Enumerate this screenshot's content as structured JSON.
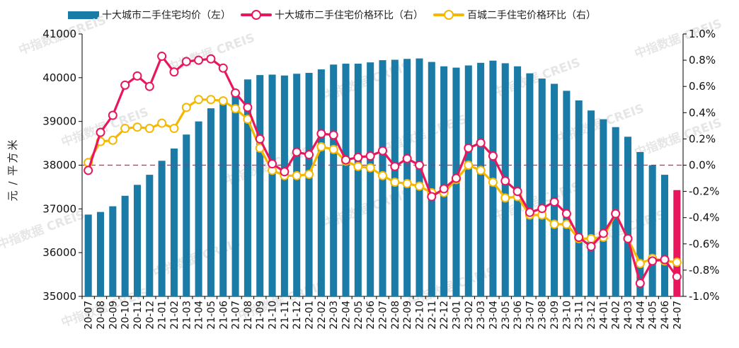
{
  "legend": {
    "bar_label": "十大城市二手住宅均价（左）",
    "line1_label": "十大城市二手住宅价格环比（右）",
    "line2_label": "百城二手住宅价格环比（右）"
  },
  "colors": {
    "bar": "#1A7BA6",
    "bar_highlight": "#E8175D",
    "line_ten_city": "#E8175D",
    "line_hundred_city": "#F5B800",
    "zero_line": "#E8175D"
  },
  "watermark": "中指数据 CREIS",
  "chart_data": {
    "type": "bar+line",
    "x": [
      "20-07",
      "20-08",
      "20-09",
      "20-10",
      "20-11",
      "20-12",
      "21-01",
      "21-02",
      "21-03",
      "21-04",
      "21-05",
      "21-06",
      "21-07",
      "21-08",
      "21-09",
      "21-10",
      "21-11",
      "21-12",
      "22-01",
      "22-02",
      "22-03",
      "22-04",
      "22-05",
      "22-06",
      "22-07",
      "22-08",
      "22-09",
      "22-10",
      "22-11",
      "22-12",
      "23-01",
      "23-02",
      "23-03",
      "23-04",
      "23-05",
      "23-06",
      "23-07",
      "23-08",
      "23-09",
      "23-10",
      "23-11",
      "23-12",
      "24-01",
      "24-02",
      "24-03",
      "24-04",
      "24-05",
      "24-06",
      "24-07"
    ],
    "y_left": {
      "label": "元/平方米",
      "lim": [
        35000,
        41000
      ],
      "ticks": [
        35000,
        36000,
        37000,
        38000,
        39000,
        40000,
        41000
      ]
    },
    "y_right": {
      "lim": [
        -1.0,
        1.0
      ],
      "ticks": [
        "-1.0%",
        "-0.8%",
        "-0.6%",
        "-0.4%",
        "-0.2%",
        "0.0%",
        "0.2%",
        "0.4%",
        "0.6%",
        "0.8%",
        "1.0%"
      ]
    },
    "series": [
      {
        "name": "十大城市二手住宅均价（左）",
        "kind": "bar",
        "axis": "left",
        "values": [
          36870,
          36930,
          37060,
          37300,
          37550,
          37780,
          38100,
          38380,
          38700,
          39000,
          39300,
          39500,
          39720,
          39960,
          40060,
          40070,
          40050,
          40090,
          40110,
          40190,
          40300,
          40320,
          40320,
          40350,
          40400,
          40410,
          40430,
          40440,
          40360,
          40260,
          40230,
          40280,
          40340,
          40390,
          40330,
          40260,
          40100,
          39980,
          39860,
          39700,
          39480,
          39250,
          39050,
          38870,
          38650,
          38300,
          38000,
          37780,
          37430
        ]
      },
      {
        "name": "十大城市二手住宅价格环比（右）",
        "kind": "line",
        "axis": "right",
        "values": [
          -0.04,
          0.25,
          0.38,
          0.61,
          0.68,
          0.6,
          0.83,
          0.71,
          0.79,
          0.8,
          0.81,
          0.74,
          0.55,
          0.44,
          0.2,
          0.01,
          -0.05,
          0.1,
          0.08,
          0.24,
          0.23,
          0.04,
          0.06,
          0.07,
          0.11,
          -0.01,
          0.05,
          0.0,
          -0.24,
          -0.18,
          -0.1,
          0.13,
          0.17,
          0.07,
          -0.12,
          -0.2,
          -0.36,
          -0.33,
          -0.28,
          -0.37,
          -0.55,
          -0.62,
          -0.52,
          -0.37,
          -0.56,
          -0.9,
          -0.73,
          -0.72,
          -0.85
        ]
      },
      {
        "name": "百城二手住宅价格环比（右）",
        "kind": "line",
        "axis": "right",
        "values": [
          0.02,
          0.18,
          0.19,
          0.28,
          0.29,
          0.28,
          0.32,
          0.28,
          0.44,
          0.5,
          0.5,
          0.49,
          0.43,
          0.35,
          0.13,
          -0.04,
          -0.08,
          -0.08,
          -0.07,
          0.14,
          0.12,
          0.03,
          -0.01,
          -0.02,
          -0.08,
          -0.13,
          -0.14,
          -0.16,
          -0.21,
          -0.21,
          -0.11,
          0.0,
          -0.04,
          -0.13,
          -0.25,
          -0.24,
          -0.38,
          -0.38,
          -0.45,
          -0.45,
          -0.56,
          -0.56,
          -0.55,
          -0.37,
          -0.56,
          -0.75,
          -0.71,
          -0.73,
          -0.74
        ]
      }
    ]
  }
}
